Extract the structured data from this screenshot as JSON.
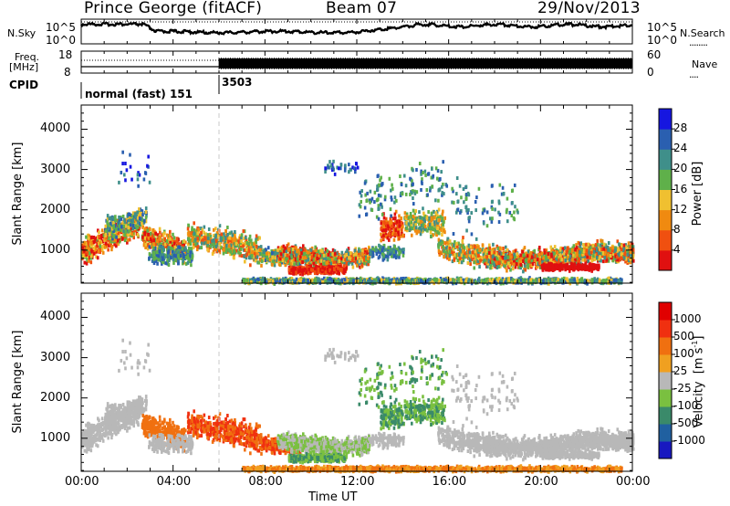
{
  "header": {
    "station": "Prince George (fitACF)",
    "beam": "Beam 07",
    "date": "29/Nov/2013"
  },
  "strip_panels": {
    "nsky": {
      "label": "N.Sky",
      "ticks": [
        "10^5",
        "10^0"
      ]
    },
    "nsearch": {
      "label": "N.Search",
      "ticks": [
        "10^5",
        "10^0"
      ],
      "legend_line": "........"
    },
    "freq": {
      "label_line1": "Freq.",
      "label_line2": "[MHz]",
      "ticks": [
        "18",
        "8"
      ]
    },
    "nave": {
      "label": "Nave",
      "ticks": [
        "60",
        "0"
      ],
      "legend_line": "...."
    },
    "cpid": {
      "label": "CPID",
      "modes": [
        "normal (fast) 151",
        "3503"
      ]
    }
  },
  "chart_data": [
    {
      "type": "heatmap",
      "title": "",
      "xlabel": "",
      "ylabel": "Slant Range [km]",
      "xlim": [
        0,
        24
      ],
      "ylim": [
        180,
        4600
      ],
      "yticks": [
        "1000",
        "2000",
        "3000",
        "4000"
      ],
      "colorbar": {
        "label": "Power [dB]",
        "ticks": [
          "4",
          "8",
          "12",
          "16",
          "20",
          "24",
          "28"
        ],
        "colors": [
          "#1616e0",
          "#2a5fb0",
          "#3f8f8a",
          "#5fb04a",
          "#f0c030",
          "#f08a10",
          "#f05010",
          "#e01010"
        ]
      }
    },
    {
      "type": "heatmap",
      "title": "",
      "xlabel": "Time UT",
      "ylabel": "Slant Range [km]",
      "xlim": [
        0,
        24
      ],
      "ylim": [
        180,
        4600
      ],
      "xticks": [
        "00:00",
        "04:00",
        "08:00",
        "12:00",
        "16:00",
        "20:00",
        "00:00"
      ],
      "yticks": [
        "1000",
        "2000",
        "3000",
        "4000"
      ],
      "colorbar": {
        "label_main": "Velocity",
        "label_unit": "[m s",
        "label_exp": "-1",
        "label_close": "]",
        "ticks": [
          "1000",
          "500",
          "100",
          "25",
          "-25",
          "-100",
          "-500",
          "-1000"
        ],
        "colors": [
          "#1818c0",
          "#2060a0",
          "#3a8a6a",
          "#7ac040",
          "#b8b8b8",
          "#f0a020",
          "#f07010",
          "#f03010",
          "#e00000"
        ]
      }
    }
  ]
}
